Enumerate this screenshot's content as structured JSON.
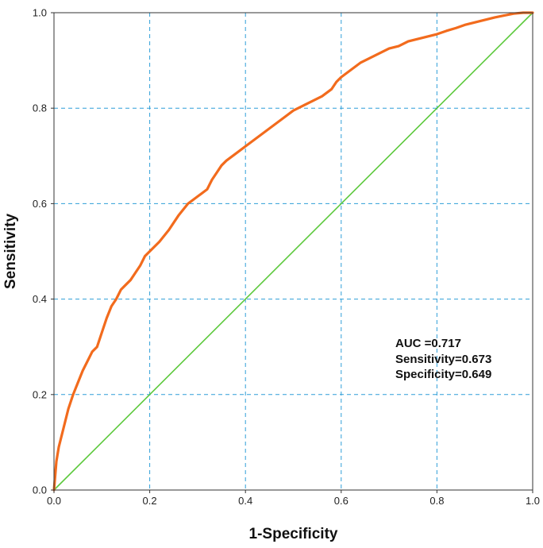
{
  "chart_data": {
    "type": "line",
    "xlabel": "1-Specificity",
    "ylabel": "Sensitivity",
    "xlim": [
      0.0,
      1.0
    ],
    "ylim": [
      0.0,
      1.0
    ],
    "x_ticks": [
      "0.0",
      "0.2",
      "0.4",
      "0.6",
      "0.8",
      "1.0"
    ],
    "y_ticks": [
      "0.0",
      "0.2",
      "0.4",
      "0.6",
      "0.8",
      "1.0"
    ],
    "grid": true,
    "annotations": [
      "AUC =0.717",
      "Sensitivity=0.673",
      "Specificity=0.649"
    ],
    "colors": {
      "roc": "#f26b1d",
      "reference": "#5cc93c",
      "grid": "#2f9ed8"
    },
    "series": [
      {
        "x": [
          0.0,
          0.005,
          0.01,
          0.02,
          0.03,
          0.04,
          0.05,
          0.06,
          0.07,
          0.08,
          0.09,
          0.1,
          0.11,
          0.12,
          0.13,
          0.14,
          0.15,
          0.16,
          0.17,
          0.18,
          0.19,
          0.2,
          0.22,
          0.24,
          0.25,
          0.26,
          0.28,
          0.3,
          0.32,
          0.33,
          0.34,
          0.35,
          0.36,
          0.38,
          0.4,
          0.42,
          0.44,
          0.46,
          0.48,
          0.5,
          0.52,
          0.54,
          0.56,
          0.58,
          0.59,
          0.6,
          0.62,
          0.64,
          0.66,
          0.68,
          0.7,
          0.72,
          0.74,
          0.76,
          0.78,
          0.8,
          0.82,
          0.84,
          0.86,
          0.88,
          0.9,
          0.92,
          0.94,
          0.96,
          0.98,
          1.0
        ],
        "y": [
          0.0,
          0.06,
          0.09,
          0.13,
          0.17,
          0.2,
          0.225,
          0.25,
          0.27,
          0.29,
          0.3,
          0.33,
          0.36,
          0.385,
          0.4,
          0.42,
          0.43,
          0.44,
          0.455,
          0.47,
          0.49,
          0.5,
          0.52,
          0.545,
          0.56,
          0.575,
          0.6,
          0.615,
          0.63,
          0.65,
          0.665,
          0.68,
          0.69,
          0.705,
          0.72,
          0.735,
          0.75,
          0.765,
          0.78,
          0.795,
          0.805,
          0.815,
          0.825,
          0.84,
          0.855,
          0.865,
          0.88,
          0.895,
          0.905,
          0.915,
          0.925,
          0.93,
          0.94,
          0.945,
          0.95,
          0.955,
          0.962,
          0.968,
          0.975,
          0.98,
          0.985,
          0.99,
          0.994,
          0.998,
          1.0,
          1.0
        ]
      },
      {
        "x": [
          0.0,
          1.0
        ],
        "y": [
          0.0,
          1.0
        ]
      }
    ]
  }
}
